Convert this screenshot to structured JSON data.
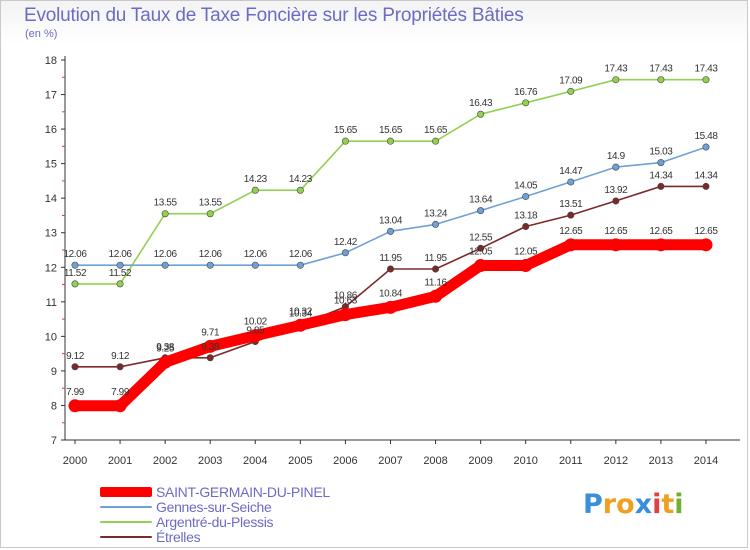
{
  "chart_data": {
    "type": "line",
    "title": "Evolution du Taux de Taxe Foncière sur les Propriétés Bâties",
    "ylabel": "(en %)",
    "xlabel": "",
    "ylim": [
      7,
      18
    ],
    "yticks": [
      "7",
      "8",
      "9",
      "10",
      "11",
      "12",
      "13",
      "14",
      "15",
      "16",
      "17",
      "18"
    ],
    "x": [
      "2000",
      "2001",
      "2002",
      "2003",
      "2004",
      "2005",
      "2006",
      "2007",
      "2008",
      "2009",
      "2010",
      "2011",
      "2012",
      "2013",
      "2014"
    ],
    "grid": false,
    "legend_position": "bottom-left",
    "series": [
      {
        "name": "SAINT-GERMAIN-DU-PINEL",
        "color": "#ff0000",
        "values": [
          7.99,
          7.99,
          9.25,
          9.71,
          10.02,
          10.32,
          10.63,
          10.84,
          11.16,
          12.05,
          12.05,
          12.65,
          12.65,
          12.65,
          12.65
        ],
        "labels": [
          "7.99",
          "7.99",
          "9.25",
          "9.71",
          "10.02",
          "10.32",
          "10.63",
          "10.84",
          "11.16",
          "12.05",
          "12.05",
          "12.65",
          "12.65",
          "12.65",
          "12.65"
        ]
      },
      {
        "name": "Gennes-sur-Seiche",
        "color": "#6fa0d6",
        "values": [
          12.06,
          12.06,
          12.06,
          12.06,
          12.06,
          12.06,
          12.42,
          13.04,
          13.24,
          13.64,
          14.05,
          14.47,
          14.9,
          15.03,
          15.48
        ],
        "labels": [
          "12.06",
          "12.06",
          "12.06",
          "12.06",
          "12.06",
          "12.06",
          "12.42",
          "13.04",
          "13.24",
          "13.64",
          "14.05",
          "14.47",
          "14.9",
          "15.03",
          "15.48"
        ]
      },
      {
        "name": "Argentré-du-Plessis",
        "color": "#92d050",
        "values": [
          11.52,
          11.52,
          13.55,
          13.55,
          14.23,
          14.23,
          15.65,
          15.65,
          15.65,
          16.43,
          16.76,
          17.09,
          17.43,
          17.43,
          17.43
        ],
        "labels": [
          "11.52",
          "11.52",
          "13.55",
          "13.55",
          "14.23",
          "14.23",
          "15.65",
          "15.65",
          "15.65",
          "16.43",
          "16.76",
          "17.09",
          "17.43",
          "17.43",
          "17.43"
        ]
      },
      {
        "name": "Étrelles",
        "color": "#7b2a2a",
        "values": [
          9.12,
          9.12,
          9.38,
          9.38,
          9.85,
          10.34,
          10.86,
          11.95,
          11.95,
          12.55,
          13.18,
          13.51,
          13.92,
          14.34,
          14.34
        ],
        "labels": [
          "9.12",
          "9.12",
          "9.38",
          "9.38",
          "9.85",
          "10.34",
          "10.86",
          "11.95",
          "11.95",
          "12.55",
          "13.18",
          "13.51",
          "13.92",
          "14.34",
          "14.34"
        ]
      }
    ]
  },
  "logo": {
    "letters": [
      "P",
      "r",
      "o",
      "x",
      "i",
      "t",
      "i"
    ],
    "colors": [
      "#3a8fd8",
      "#f0a020",
      "#f0a020",
      "#3a8fd8",
      "#e04040",
      "#f0a020",
      "#70b030"
    ]
  }
}
